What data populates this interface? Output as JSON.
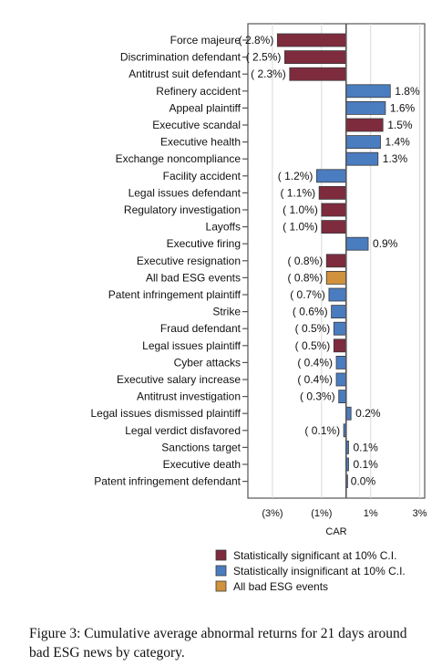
{
  "chart_data": {
    "type": "bar",
    "orientation": "horizontal",
    "xlabel": "CAR",
    "ylabel": "",
    "xlim": [
      -4.0,
      3.2
    ],
    "x_ticks": [
      {
        "value": -3,
        "label": "(3%)"
      },
      {
        "value": -1,
        "label": "(1%)"
      },
      {
        "value": 1,
        "label": "1%"
      },
      {
        "value": 3,
        "label": "3%"
      }
    ],
    "grid": true,
    "categories": [
      "Force majeure",
      "Discrimination defendant",
      "Antitrust suit defendant",
      "Refinery accident",
      "Appeal plaintiff",
      "Executive scandal",
      "Executive health",
      "Exchange noncompliance",
      "Facility accident",
      "Legal issues defendant",
      "Regulatory investigation",
      "Layoffs",
      "Executive firing",
      "Executive resignation",
      "All bad ESG events",
      "Patent infringement plaintiff",
      "Strike",
      "Fraud defendant",
      "Legal issues plaintiff",
      "Cyber attacks",
      "Executive salary increase",
      "Antitrust investigation",
      "Legal issues dismissed plaintiff",
      "Legal verdict disfavored",
      "Sanctions target",
      "Executive death",
      "Patent infringement defendant"
    ],
    "values": [
      -2.8,
      -2.5,
      -2.3,
      1.8,
      1.6,
      1.5,
      1.4,
      1.3,
      -1.2,
      -1.1,
      -1.0,
      -1.0,
      0.9,
      -0.8,
      -0.8,
      -0.7,
      -0.6,
      -0.5,
      -0.5,
      -0.4,
      -0.4,
      -0.3,
      0.2,
      -0.1,
      0.1,
      0.1,
      0.0
    ],
    "value_labels": [
      "( 2.8%)",
      "( 2.5%)",
      "( 2.3%)",
      "1.8%",
      "1.6%",
      "1.5%",
      "1.4%",
      "1.3%",
      "( 1.2%)",
      "( 1.1%)",
      "( 1.0%)",
      "( 1.0%)",
      "0.9%",
      "( 0.8%)",
      "( 0.8%)",
      "( 0.7%)",
      "( 0.6%)",
      "( 0.5%)",
      "( 0.5%)",
      "( 0.4%)",
      "( 0.4%)",
      "( 0.3%)",
      "0.2%",
      "( 0.1%)",
      "0.1%",
      "0.1%",
      "0.0%"
    ],
    "groups": [
      "sig",
      "sig",
      "sig",
      "insig",
      "insig",
      "sig",
      "insig",
      "insig",
      "insig",
      "sig",
      "sig",
      "sig",
      "insig",
      "sig",
      "all",
      "insig",
      "insig",
      "insig",
      "sig",
      "insig",
      "insig",
      "insig",
      "insig",
      "insig",
      "insig",
      "insig",
      "insig"
    ],
    "legend": {
      "placement": "bottom-right",
      "entries": [
        {
          "key": "sig",
          "label": "Statistically significant at 10% C.I."
        },
        {
          "key": "insig",
          "label": "Statistically insignificant at 10% C.I."
        },
        {
          "key": "all",
          "label": "All bad ESG events"
        }
      ]
    },
    "colors": {
      "sig": "#7e2b3e",
      "insig": "#4a7cc0",
      "all": "#d0923c"
    }
  },
  "caption": "Figure 3: Cumulative average abnormal returns for 21 days around bad ESG news by category."
}
